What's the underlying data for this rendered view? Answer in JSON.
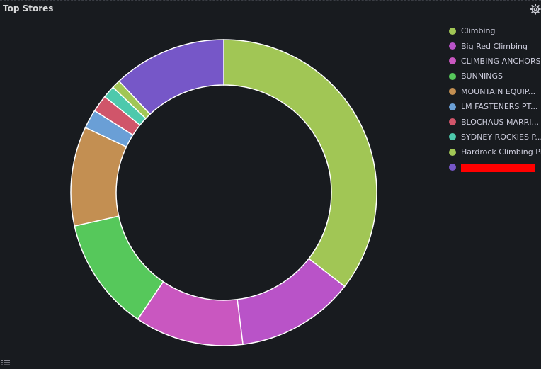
{
  "panel": {
    "title": "Top Stores"
  },
  "icons": {
    "settings": "gear-icon",
    "list": "list-icon"
  },
  "chart_data": {
    "type": "pie",
    "variant": "donut",
    "title": "Top Stores",
    "legend_position": "right",
    "slice_border_color": "#ffffff",
    "slices": [
      {
        "label": "Climbing",
        "value": 35.5,
        "color": "#a1c655",
        "redacted": false
      },
      {
        "label": "Big Red Climbing",
        "value": 12.5,
        "color": "#b953c8",
        "redacted": false
      },
      {
        "label": "CLIMBING ANCHORS",
        "value": 11.5,
        "color": "#c957c0",
        "redacted": false
      },
      {
        "label": "BUNNINGS",
        "value": 12.0,
        "color": "#56c85b",
        "redacted": false
      },
      {
        "label": "MOUNTAIN EQUIP...",
        "value": 10.5,
        "color": "#c38f52",
        "redacted": false
      },
      {
        "label": "LM FASTENERS PT...",
        "value": 2.0,
        "color": "#6a9fd6",
        "redacted": false
      },
      {
        "label": "BLOCHAUS MARRI...",
        "value": 1.8,
        "color": "#d0556a",
        "redacted": false
      },
      {
        "label": "SYDNEY ROCKIES P...",
        "value": 1.3,
        "color": "#4dc9ac",
        "redacted": false
      },
      {
        "label": "Hardrock Climbing Pl",
        "value": 0.9,
        "color": "#a1c655",
        "redacted": false
      },
      {
        "label": "",
        "value": 12.0,
        "color": "#7657c8",
        "redacted": true
      }
    ]
  }
}
